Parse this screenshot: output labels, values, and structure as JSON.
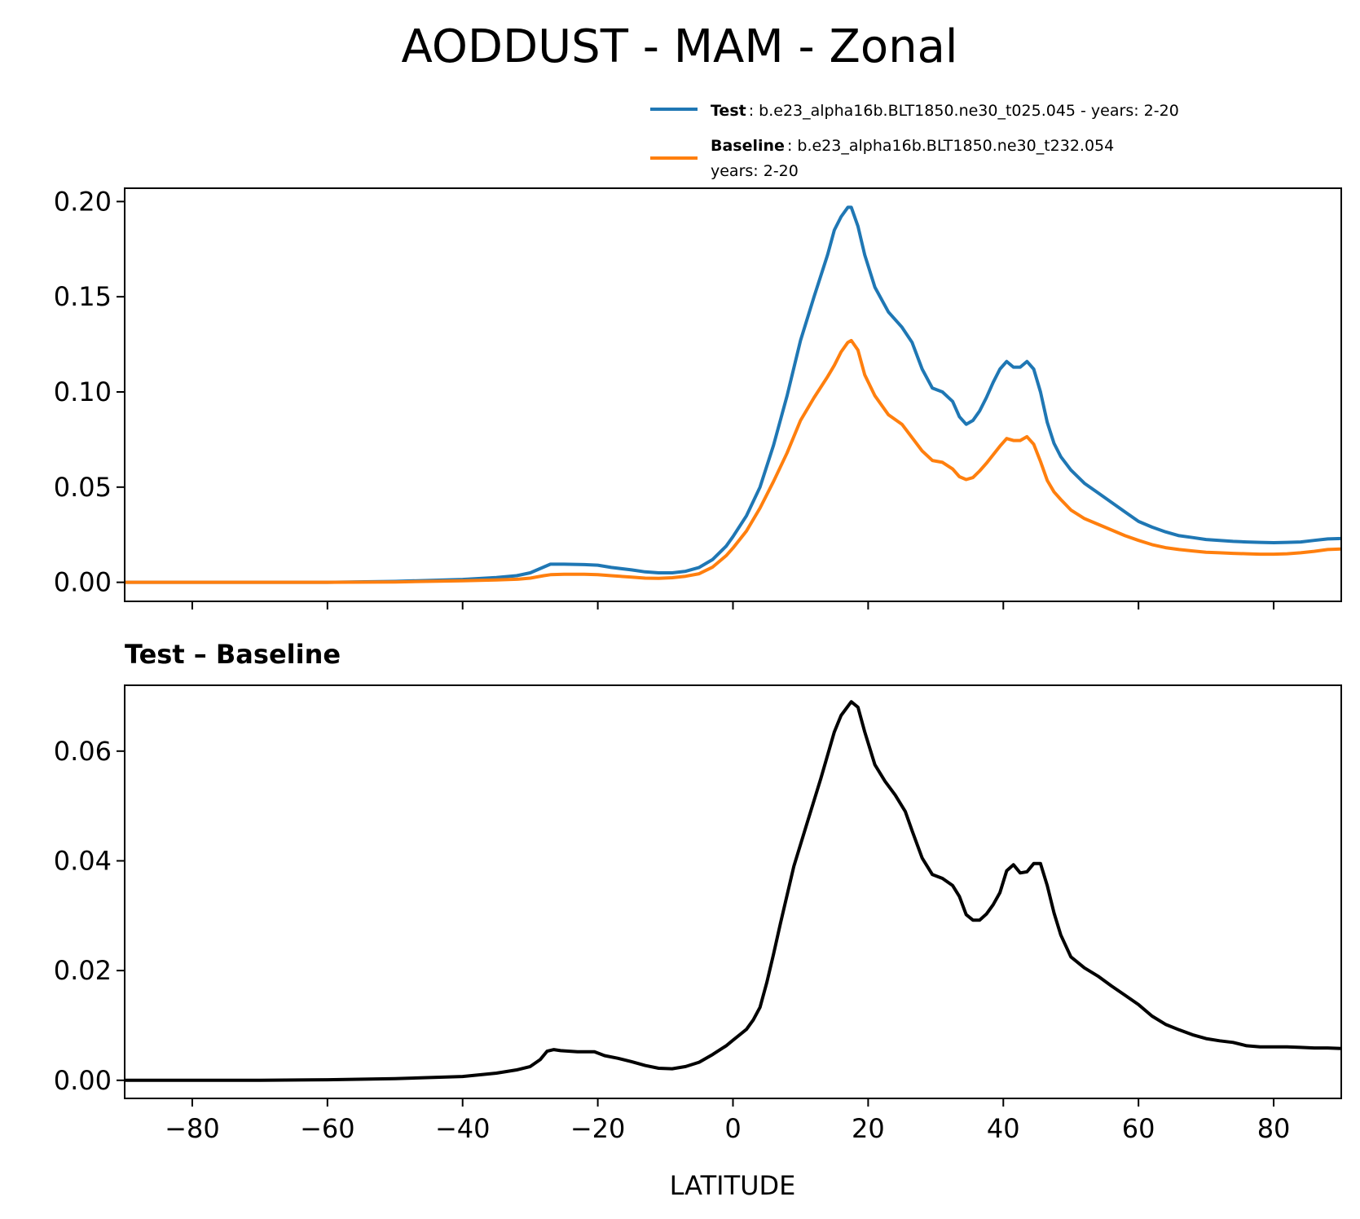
{
  "chart_data": [
    {
      "type": "line",
      "title": "AODDUST - MAM - Zonal",
      "xlabel": "",
      "ylabel": "",
      "xlim": [
        -90,
        90
      ],
      "ylim": [
        -0.01,
        0.207
      ],
      "yticks": [
        0.0,
        0.05,
        0.1,
        0.15,
        0.2
      ],
      "ytick_labels": [
        "0.00",
        "0.05",
        "0.10",
        "0.15",
        "0.20"
      ],
      "xticks": [
        -80,
        -60,
        -40,
        -20,
        0,
        20,
        40,
        60,
        80
      ],
      "grid": false,
      "legend_position": "top-right",
      "legend": [
        {
          "name_bold": "Test",
          "text": ": b.e23_alpha16b.BLT1850.ne30_t025.045 - years: 2-20",
          "text2": ""
        },
        {
          "name_bold": "Baseline",
          "text": ": b.e23_alpha16b.BLT1850.ne30_t232.054",
          "text2": "years: 2-20"
        }
      ],
      "x": [
        -90,
        -80,
        -70,
        -60,
        -50,
        -40,
        -35,
        -32,
        -30,
        -28,
        -27,
        -25,
        -22,
        -20,
        -18,
        -15,
        -13,
        -11,
        -9,
        -7,
        -5,
        -3,
        -1,
        0,
        2,
        4,
        6,
        8,
        10,
        12,
        14,
        15,
        16,
        17,
        17.5,
        18.5,
        19.5,
        21,
        23,
        25,
        26.5,
        28,
        29.5,
        31,
        32.5,
        33.5,
        34.5,
        35.5,
        36.5,
        37.5,
        38.5,
        39.5,
        40.5,
        41.5,
        42.5,
        43.5,
        44.5,
        45.5,
        46.5,
        47.5,
        48.5,
        50,
        52,
        54,
        56,
        58,
        60,
        62,
        64,
        66,
        68,
        70,
        72,
        74,
        76,
        78,
        80,
        82,
        84,
        86,
        88,
        90
      ],
      "series": [
        {
          "name": "Test",
          "color": "#1f77b4",
          "values": [
            0.0,
            0.0,
            0.0,
            0.0,
            0.0005,
            0.0015,
            0.0025,
            0.0035,
            0.005,
            0.008,
            0.0095,
            0.0095,
            0.0093,
            0.009,
            0.0078,
            0.0065,
            0.0055,
            0.005,
            0.005,
            0.0058,
            0.0078,
            0.012,
            0.019,
            0.024,
            0.035,
            0.05,
            0.072,
            0.098,
            0.127,
            0.15,
            0.172,
            0.185,
            0.192,
            0.197,
            0.197,
            0.187,
            0.172,
            0.155,
            0.142,
            0.134,
            0.126,
            0.112,
            0.102,
            0.1,
            0.095,
            0.087,
            0.083,
            0.085,
            0.09,
            0.097,
            0.105,
            0.112,
            0.116,
            0.113,
            0.113,
            0.116,
            0.112,
            0.1,
            0.084,
            0.073,
            0.066,
            0.059,
            0.052,
            0.047,
            0.042,
            0.037,
            0.032,
            0.029,
            0.0265,
            0.0245,
            0.0235,
            0.0225,
            0.022,
            0.0215,
            0.0212,
            0.021,
            0.0208,
            0.021,
            0.0212,
            0.022,
            0.0228,
            0.023
          ]
        },
        {
          "name": "Baseline",
          "color": "#ff7f0e",
          "values": [
            0.0,
            0.0,
            0.0,
            0.0,
            0.0002,
            0.0008,
            0.0012,
            0.0016,
            0.0022,
            0.0035,
            0.004,
            0.0042,
            0.0042,
            0.004,
            0.0035,
            0.0027,
            0.0022,
            0.0021,
            0.0024,
            0.0032,
            0.0045,
            0.008,
            0.014,
            0.018,
            0.027,
            0.039,
            0.053,
            0.068,
            0.085,
            0.097,
            0.108,
            0.114,
            0.121,
            0.126,
            0.127,
            0.122,
            0.109,
            0.098,
            0.088,
            0.083,
            0.076,
            0.069,
            0.064,
            0.063,
            0.0595,
            0.0555,
            0.054,
            0.055,
            0.0585,
            0.0625,
            0.067,
            0.0715,
            0.0755,
            0.0745,
            0.0745,
            0.0765,
            0.0725,
            0.0635,
            0.0535,
            0.0475,
            0.0435,
            0.038,
            0.0335,
            0.0305,
            0.0275,
            0.0245,
            0.022,
            0.0198,
            0.0182,
            0.0172,
            0.0165,
            0.0158,
            0.0155,
            0.0152,
            0.015,
            0.0148,
            0.0148,
            0.015,
            0.0155,
            0.0163,
            0.0172,
            0.0175
          ]
        }
      ]
    },
    {
      "type": "line",
      "title": "Test – Baseline",
      "xlabel": "LATITUDE",
      "ylabel": "",
      "xlim": [
        -90,
        90
      ],
      "ylim": [
        -0.0033,
        0.072
      ],
      "yticks": [
        0.0,
        0.02,
        0.04,
        0.06
      ],
      "ytick_labels": [
        "0.00",
        "0.02",
        "0.04",
        "0.06"
      ],
      "xticks": [
        -80,
        -60,
        -40,
        -20,
        0,
        20,
        40,
        60,
        80
      ],
      "xtick_labels": [
        "−80",
        "−60",
        "−40",
        "−20",
        "0",
        "20",
        "40",
        "60",
        "80"
      ],
      "grid": false,
      "x": [
        -90,
        -80,
        -70,
        -60,
        -50,
        -40,
        -35,
        -32,
        -30,
        -28.5,
        -27.5,
        -26.5,
        -25.5,
        -23,
        -20.5,
        -19,
        -17,
        -15,
        -13,
        -11,
        -9,
        -7,
        -5,
        -3,
        -1,
        0,
        2,
        3,
        4,
        5,
        6,
        7,
        9,
        11,
        13,
        15,
        16,
        17.5,
        18.5,
        19.5,
        21,
        22.5,
        24,
        25.5,
        26.5,
        28,
        29.5,
        31,
        32.5,
        33.5,
        34.5,
        35.5,
        36.5,
        37.5,
        38.5,
        39.5,
        40.5,
        41.5,
        42.5,
        43.5,
        44.5,
        45.5,
        46.5,
        47.5,
        48.5,
        50,
        52,
        54,
        56,
        58,
        60,
        62,
        64,
        66,
        68,
        70,
        72,
        74,
        76,
        78,
        80,
        82,
        84,
        86,
        88,
        90
      ],
      "series": [
        {
          "name": "Test – Baseline",
          "color": "#000000",
          "values": [
            0.0,
            0.0,
            0.0,
            0.0001,
            0.0003,
            0.0007,
            0.0013,
            0.0019,
            0.0025,
            0.0038,
            0.0053,
            0.0056,
            0.0054,
            0.0052,
            0.0052,
            0.0045,
            0.004,
            0.0034,
            0.0027,
            0.0022,
            0.0021,
            0.0025,
            0.0033,
            0.0047,
            0.0063,
            0.0073,
            0.0093,
            0.011,
            0.0133,
            0.0178,
            0.023,
            0.0285,
            0.039,
            0.047,
            0.055,
            0.0635,
            0.0665,
            0.069,
            0.068,
            0.0635,
            0.0575,
            0.0545,
            0.052,
            0.049,
            0.0455,
            0.0405,
            0.0375,
            0.0368,
            0.0355,
            0.0335,
            0.0302,
            0.0292,
            0.0292,
            0.0303,
            0.032,
            0.0342,
            0.0382,
            0.0393,
            0.0378,
            0.038,
            0.0395,
            0.0395,
            0.0355,
            0.0305,
            0.0265,
            0.0225,
            0.0205,
            0.019,
            0.0172,
            0.0155,
            0.0138,
            0.0117,
            0.0102,
            0.0092,
            0.0083,
            0.0076,
            0.0072,
            0.0069,
            0.0063,
            0.0061,
            0.0061,
            0.0061,
            0.006,
            0.0059,
            0.0059,
            0.0058
          ]
        }
      ]
    }
  ]
}
